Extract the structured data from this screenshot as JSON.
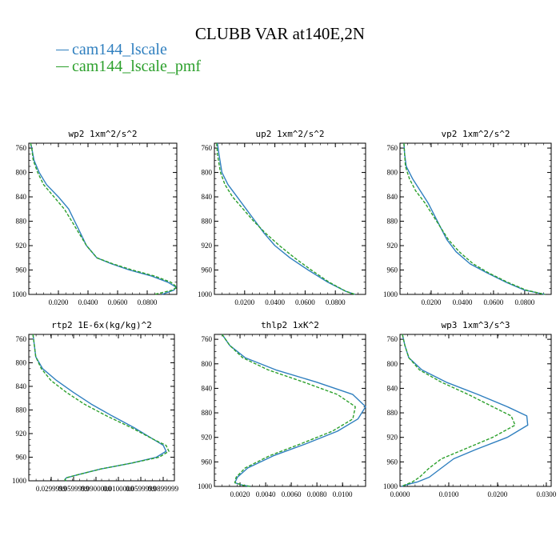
{
  "title": "CLUBB VAR at140E,2N",
  "legend": [
    {
      "label": "cam144_lscale",
      "color": "#2f7fbf"
    },
    {
      "label": "cam144_lscale_pmf",
      "color": "#2ca02c"
    }
  ],
  "chart_data": [
    {
      "type": "line",
      "title": "wp2  1xm^2/s^2",
      "ylim": [
        1000,
        752
      ],
      "xlim": [
        0.0,
        0.1
      ],
      "yticks": [
        "760",
        "800",
        "840",
        "880",
        "920",
        "960",
        "1000"
      ],
      "xticks": [
        "0.0200",
        "0.0400",
        "0.0600",
        "0.0800"
      ],
      "series": [
        {
          "name": "cam144_lscale",
          "x": [
            0.0012,
            0.002,
            0.0035,
            0.007,
            0.012,
            0.02,
            0.027,
            0.031,
            0.035,
            0.039,
            0.046,
            0.056,
            0.068,
            0.083,
            0.094,
            0.0995,
            0.098,
            0.09
          ],
          "y": [
            752,
            760,
            780,
            800,
            820,
            840,
            860,
            880,
            900,
            920,
            940,
            950,
            960,
            970,
            980,
            988,
            993,
            1000
          ]
        },
        {
          "name": "cam144_lscale_pmf",
          "x": [
            0.0012,
            0.002,
            0.003,
            0.006,
            0.01,
            0.017,
            0.024,
            0.029,
            0.034,
            0.039,
            0.046,
            0.057,
            0.07,
            0.085,
            0.096,
            0.1,
            0.097,
            0.085
          ],
          "y": [
            752,
            760,
            780,
            800,
            820,
            840,
            860,
            880,
            900,
            920,
            940,
            950,
            960,
            970,
            980,
            988,
            993,
            1000
          ]
        }
      ]
    },
    {
      "type": "line",
      "title": "up2  1xm^2/s^2",
      "ylim": [
        1000,
        752
      ],
      "xlim": [
        0.0,
        0.1
      ],
      "yticks": [
        "760",
        "800",
        "840",
        "880",
        "920",
        "960",
        "1000"
      ],
      "xticks": [
        "0.0200",
        "0.0400",
        "0.0600",
        "0.0800"
      ],
      "series": [
        {
          "name": "cam144_lscale",
          "x": [
            0.002,
            0.003,
            0.005,
            0.009,
            0.015,
            0.021,
            0.027,
            0.033,
            0.04,
            0.05,
            0.062,
            0.075,
            0.087,
            0.093
          ],
          "y": [
            752,
            770,
            800,
            820,
            840,
            860,
            880,
            900,
            920,
            940,
            960,
            980,
            995,
            1000
          ]
        },
        {
          "name": "cam144_lscale_pmf",
          "x": [
            0.0015,
            0.002,
            0.004,
            0.007,
            0.012,
            0.019,
            0.026,
            0.034,
            0.043,
            0.053,
            0.064,
            0.076,
            0.087,
            0.093
          ],
          "y": [
            752,
            770,
            800,
            820,
            840,
            860,
            880,
            900,
            920,
            940,
            960,
            980,
            995,
            1000
          ]
        }
      ]
    },
    {
      "type": "line",
      "title": "vp2  1xm^2/s^2",
      "ylim": [
        1000,
        752
      ],
      "xlim": [
        0.0,
        0.097
      ],
      "yticks": [
        "760",
        "800",
        "840",
        "880",
        "920",
        "960",
        "1000"
      ],
      "xticks": [
        "0.0200",
        "0.0400",
        "0.0600",
        "0.0800"
      ],
      "series": [
        {
          "name": "cam144_lscale",
          "x": [
            0.0025,
            0.003,
            0.004,
            0.008,
            0.013,
            0.018,
            0.022,
            0.026,
            0.03,
            0.036,
            0.045,
            0.056,
            0.068,
            0.08,
            0.093
          ],
          "y": [
            752,
            770,
            790,
            810,
            830,
            850,
            870,
            890,
            910,
            930,
            950,
            965,
            980,
            993,
            1000
          ]
        },
        {
          "name": "cam144_lscale_pmf",
          "x": [
            0.0025,
            0.003,
            0.0035,
            0.006,
            0.01,
            0.016,
            0.021,
            0.026,
            0.031,
            0.038,
            0.047,
            0.057,
            0.069,
            0.081,
            0.093
          ],
          "y": [
            752,
            770,
            790,
            810,
            830,
            850,
            870,
            890,
            910,
            930,
            950,
            965,
            980,
            993,
            1000
          ]
        }
      ]
    },
    {
      "type": "line",
      "title": "rtp2  1E-6x(kg/kg)^2",
      "ylim": [
        1000,
        752
      ],
      "xlim": [
        0.0,
        0.105
      ],
      "yticks": [
        "760",
        "800",
        "840",
        "880",
        "920",
        "960",
        "1000"
      ],
      "xticks": [
        "0.0299999",
        "0.0599999",
        "0.0900000",
        "0.0100000",
        "0.0599999",
        "0.0899999"
      ],
      "series": [
        {
          "name": "cam144_lscale",
          "x": [
            0.003,
            0.004,
            0.005,
            0.01,
            0.02,
            0.032,
            0.045,
            0.06,
            0.076,
            0.09,
            0.097,
            0.099,
            0.092,
            0.074,
            0.052,
            0.035,
            0.027,
            0.026,
            0.027
          ],
          "y": [
            752,
            770,
            790,
            810,
            830,
            850,
            870,
            890,
            910,
            930,
            940,
            950,
            960,
            970,
            980,
            990,
            995,
            998,
            1000
          ]
        },
        {
          "name": "cam144_lscale_pmf",
          "x": [
            0.003,
            0.004,
            0.005,
            0.009,
            0.016,
            0.027,
            0.04,
            0.056,
            0.074,
            0.09,
            0.099,
            0.101,
            0.094,
            0.074,
            0.052,
            0.035,
            0.027,
            0.026,
            0.027
          ],
          "y": [
            752,
            770,
            790,
            810,
            830,
            850,
            870,
            890,
            910,
            930,
            940,
            950,
            960,
            970,
            980,
            990,
            995,
            998,
            1000
          ]
        }
      ]
    },
    {
      "type": "line",
      "title": "thlp2  1xK^2",
      "ylim": [
        1000,
        752
      ],
      "xlim": [
        0.0,
        0.0118
      ],
      "yticks": [
        "760",
        "800",
        "840",
        "880",
        "920",
        "960",
        "1000"
      ],
      "xticks": [
        "0.0020",
        "0.0040",
        "0.0060",
        "0.0080",
        "0.0100"
      ],
      "series": [
        {
          "name": "cam144_lscale",
          "x": [
            0.0006,
            0.0012,
            0.0024,
            0.0048,
            0.008,
            0.0108,
            0.0118,
            0.0112,
            0.0096,
            0.0072,
            0.0046,
            0.0026,
            0.0018,
            0.0016,
            0.0022,
            0.0028
          ],
          "y": [
            752,
            770,
            790,
            810,
            830,
            850,
            870,
            890,
            910,
            930,
            950,
            970,
            985,
            994,
            998,
            1000
          ]
        },
        {
          "name": "cam144_lscale_pmf",
          "x": [
            0.0006,
            0.0012,
            0.0022,
            0.0042,
            0.007,
            0.0096,
            0.011,
            0.0108,
            0.0092,
            0.0068,
            0.0043,
            0.0024,
            0.0017,
            0.0016,
            0.0022,
            0.0028
          ],
          "y": [
            752,
            770,
            790,
            810,
            830,
            850,
            870,
            890,
            910,
            930,
            950,
            970,
            985,
            994,
            998,
            1000
          ]
        }
      ]
    },
    {
      "type": "line",
      "title": "wp3  1xm^3/s^3",
      "ylim": [
        1000,
        752
      ],
      "xlim": [
        0.0,
        0.031
      ],
      "yticks": [
        "760",
        "800",
        "840",
        "880",
        "920",
        "960",
        "1000"
      ],
      "xticks": [
        "0.0000",
        "0.0100",
        "0.0200",
        "0.0300"
      ],
      "series": [
        {
          "name": "cam144_lscale",
          "x": [
            0.0005,
            0.001,
            0.0018,
            0.0045,
            0.0095,
            0.016,
            0.022,
            0.026,
            0.0262,
            0.022,
            0.0155,
            0.011,
            0.0085,
            0.006,
            0.0035,
            0.0015,
            0.0003
          ],
          "y": [
            752,
            770,
            790,
            810,
            830,
            850,
            870,
            885,
            900,
            920,
            940,
            955,
            970,
            985,
            993,
            997,
            1000
          ]
        },
        {
          "name": "cam144_lscale_pmf",
          "x": [
            0.0005,
            0.001,
            0.0018,
            0.004,
            0.0085,
            0.014,
            0.019,
            0.0228,
            0.0236,
            0.019,
            0.013,
            0.0085,
            0.006,
            0.004,
            0.0025,
            0.0012,
            0.0003
          ],
          "y": [
            752,
            770,
            790,
            810,
            830,
            850,
            870,
            885,
            900,
            920,
            940,
            955,
            970,
            985,
            993,
            997,
            1000
          ]
        }
      ]
    }
  ]
}
